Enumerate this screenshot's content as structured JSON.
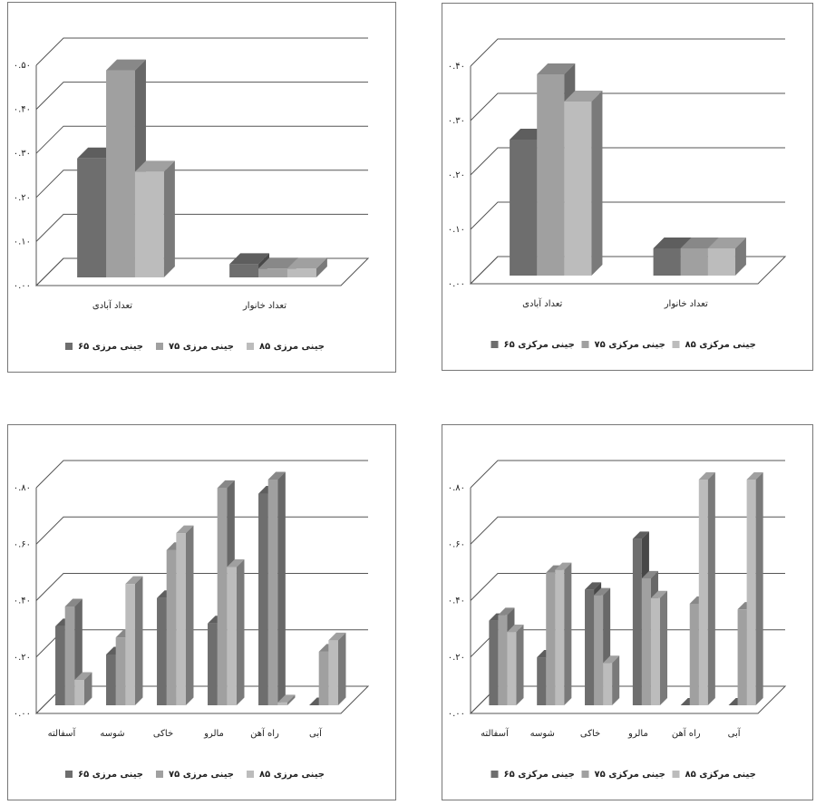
{
  "chart_data": [
    {
      "type": "bar3d",
      "categories": [
        "تعداد آبادی",
        "تعداد خانوار"
      ],
      "series": [
        {
          "name": "جینی مرزی ۶۵",
          "color": "#6e6e6e",
          "values": [
            0.27,
            0.03
          ]
        },
        {
          "name": "جینی مرزی ۷۵",
          "color": "#a0a0a0",
          "values": [
            0.47,
            0.02
          ]
        },
        {
          "name": "جینی مرزی ۸۵",
          "color": "#bcbcbc",
          "values": [
            0.24,
            0.02
          ]
        }
      ],
      "ylim": [
        0,
        0.5
      ],
      "yticks": [
        {
          "value": 0,
          "label": "۰.۰۰"
        },
        {
          "value": 0.1,
          "label": "۰.۱۰"
        },
        {
          "value": 0.2,
          "label": "۰.۲۰"
        },
        {
          "value": 0.3,
          "label": "۰.۳۰"
        },
        {
          "value": 0.4,
          "label": "۰.۴۰"
        },
        {
          "value": 0.5,
          "label": "۰.۵۰"
        }
      ],
      "grid": true
    },
    {
      "type": "bar3d",
      "categories": [
        "تعداد آبادی",
        "تعداد خانوار"
      ],
      "series": [
        {
          "name": "جینی مرکزی ۶۵",
          "color": "#6e6e6e",
          "values": [
            0.25,
            0.05
          ]
        },
        {
          "name": "جینی مرکزی ۷۵",
          "color": "#a0a0a0",
          "values": [
            0.37,
            0.05
          ]
        },
        {
          "name": "جینی مرکزی ۸۵",
          "color": "#bcbcbc",
          "values": [
            0.32,
            0.05
          ]
        }
      ],
      "ylim": [
        0,
        0.4
      ],
      "yticks": [
        {
          "value": 0,
          "label": "۰.۰۰"
        },
        {
          "value": 0.1,
          "label": "۰.۱۰"
        },
        {
          "value": 0.2,
          "label": "۰.۲۰"
        },
        {
          "value": 0.3,
          "label": "۰.۳۰"
        },
        {
          "value": 0.4,
          "label": "۰.۴۰"
        }
      ],
      "grid": true
    },
    {
      "type": "bar3d",
      "categories": [
        "آسفالته",
        "شوسه",
        "خاکی",
        "مالرو",
        "راه آهن",
        "آبی"
      ],
      "series": [
        {
          "name": "جینی مرزی ۶۵",
          "color": "#6e6e6e",
          "values": [
            0.28,
            0.18,
            0.38,
            0.29,
            0.75,
            0
          ]
        },
        {
          "name": "جینی مرزی ۷۵",
          "color": "#a0a0a0",
          "values": [
            0.35,
            0.24,
            0.55,
            0.77,
            0.8,
            0.19
          ]
        },
        {
          "name": "جینی مرزی ۸۵",
          "color": "#bcbcbc",
          "values": [
            0.09,
            0.43,
            0.61,
            0.49,
            0.01,
            0.23
          ]
        }
      ],
      "ylim": [
        0,
        0.8
      ],
      "yticks": [
        {
          "value": 0,
          "label": "۰.۰۰"
        },
        {
          "value": 0.2,
          "label": "۰.۲۰"
        },
        {
          "value": 0.4,
          "label": "۰.۴۰"
        },
        {
          "value": 0.6,
          "label": "۰.۶۰"
        },
        {
          "value": 0.8,
          "label": "۰.۸۰"
        }
      ],
      "grid": true
    },
    {
      "type": "bar3d",
      "categories": [
        "آسفالته",
        "شوسه",
        "خاکی",
        "مالرو",
        "راه آهن",
        "آبی"
      ],
      "series": [
        {
          "name": "جینی مرکزی ۶۵",
          "color": "#6e6e6e",
          "values": [
            0.3,
            0.17,
            0.41,
            0.59,
            0,
            0
          ]
        },
        {
          "name": "جینی مرکزی ۷۵",
          "color": "#a0a0a0",
          "values": [
            0.32,
            0.47,
            0.39,
            0.45,
            0.36,
            0.34
          ]
        },
        {
          "name": "جینی مرکزی ۸۵",
          "color": "#bcbcbc",
          "values": [
            0.26,
            0.48,
            0.15,
            0.38,
            0.8,
            0.8
          ]
        }
      ],
      "ylim": [
        0,
        0.8
      ],
      "yticks": [
        {
          "value": 0,
          "label": "۰.۰۰"
        },
        {
          "value": 0.2,
          "label": "۰.۲۰"
        },
        {
          "value": 0.4,
          "label": "۰.۴۰"
        },
        {
          "value": 0.6,
          "label": "۰.۶۰"
        },
        {
          "value": 0.8,
          "label": "۰.۸۰"
        }
      ],
      "grid": true
    }
  ]
}
